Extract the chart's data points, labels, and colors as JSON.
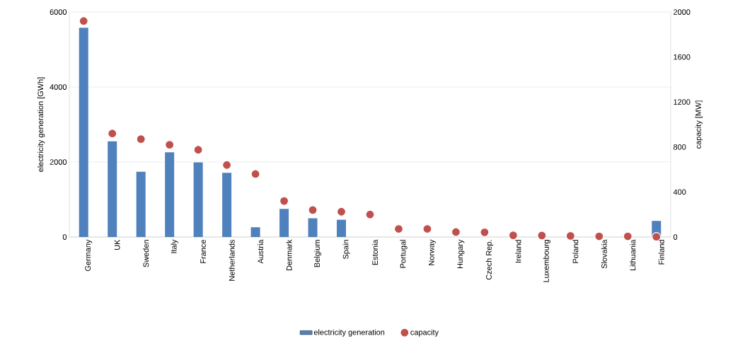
{
  "chart_data": {
    "type": "bar",
    "categories": [
      "Germany",
      "UK",
      "Sweden",
      "Italy",
      "France",
      "Netherlands",
      "Austria",
      "Denmark",
      "Belgium",
      "Spain",
      "Estonia",
      "Portugal",
      "Norway",
      "Hungary",
      "Czech Rep.",
      "Ireland",
      "Luxembourg",
      "Poland",
      "Slovakia",
      "Lithuania",
      "Finland"
    ],
    "series": [
      {
        "name": "electricity generation",
        "color": "#4f81bd",
        "values": [
          5580,
          2550,
          1740,
          2260,
          1990,
          1710,
          260,
          750,
          500,
          460,
          0,
          0,
          0,
          0,
          0,
          0,
          0,
          0,
          0,
          0,
          430
        ]
      },
      {
        "name": "capacity",
        "type": "scatter",
        "axis": "y2",
        "color": "#c0504d",
        "values": [
          1920,
          920,
          870,
          820,
          775,
          640,
          560,
          320,
          240,
          225,
          200,
          72,
          72,
          44,
          42,
          15,
          13,
          10,
          6,
          6,
          2
        ]
      }
    ],
    "ylabel": "electricity generation [GWh]",
    "y2label": "capacity [MW]",
    "ylim": [
      0,
      6000
    ],
    "yticks": [
      0,
      2000,
      4000,
      6000
    ],
    "y2lim": [
      0,
      2000
    ],
    "y2ticks": [
      0,
      400,
      800,
      1200,
      1600,
      2000
    ],
    "grid": "y",
    "legend": "bottom"
  }
}
